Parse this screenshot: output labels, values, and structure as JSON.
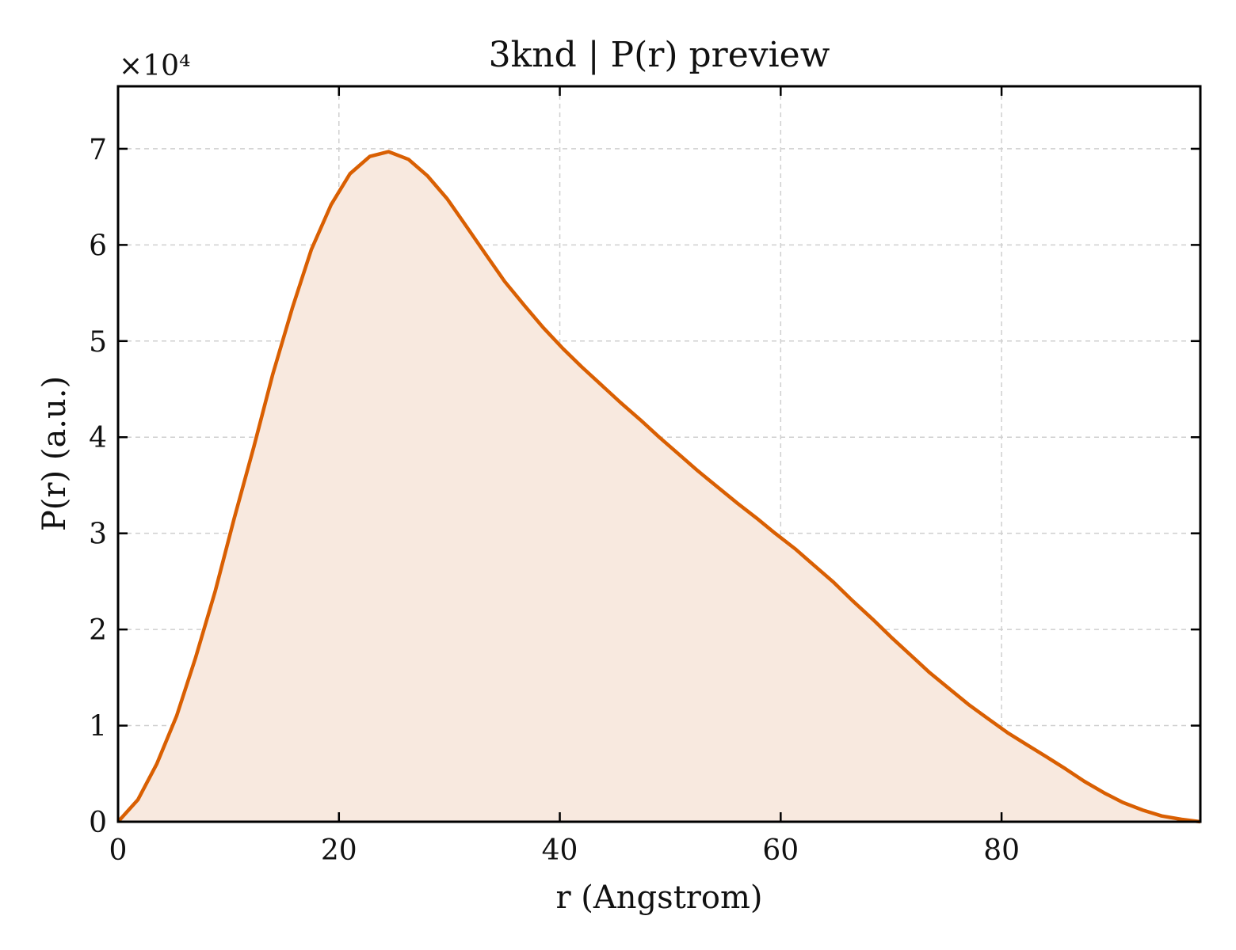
{
  "chart_data": {
    "type": "area",
    "title": "3knd | P(r) preview",
    "xlabel": "r (Angstrom)",
    "ylabel": "P(r) (a.u.)",
    "y_multiplier": "×10⁴",
    "xlim": [
      0,
      98
    ],
    "ylim": [
      0,
      76500
    ],
    "xticks": [
      0,
      20,
      40,
      60,
      80
    ],
    "yticks": [
      0,
      10000,
      20000,
      30000,
      40000,
      50000,
      60000,
      70000
    ],
    "ytick_labels": [
      "0",
      "1",
      "2",
      "3",
      "4",
      "5",
      "6",
      "7"
    ],
    "grid": true,
    "line_color": "#D95F02",
    "fill_color": "#F8E9DF",
    "series": [
      {
        "x": [
          0,
          1.8,
          3.5,
          5.3,
          7.0,
          8.8,
          10.5,
          12.3,
          14.0,
          15.8,
          17.5,
          19.3,
          21.0,
          22.8,
          24.5,
          26.3,
          28.0,
          29.8,
          31.5,
          33.3,
          35.0,
          36.8,
          38.5,
          40.3,
          42.0,
          43.8,
          45.5,
          47.3,
          49.0,
          50.8,
          52.5,
          54.3,
          56.0,
          57.8,
          59.5,
          61.3,
          63.0,
          64.8,
          66.5,
          68.3,
          70.0,
          71.8,
          73.5,
          75.3,
          77.0,
          78.8,
          80.5,
          82.3,
          84.0,
          85.8,
          87.5,
          89.3,
          91.0,
          92.8,
          94.5,
          96.3,
          98.0
        ],
        "y": [
          0,
          2300,
          6000,
          11000,
          17000,
          24000,
          31500,
          39000,
          46500,
          53500,
          59500,
          64200,
          67400,
          69200,
          69700,
          68900,
          67200,
          64800,
          62000,
          59000,
          56200,
          53700,
          51400,
          49200,
          47300,
          45400,
          43600,
          41800,
          40000,
          38200,
          36500,
          34800,
          33200,
          31600,
          30000,
          28400,
          26700,
          24900,
          23000,
          21100,
          19200,
          17300,
          15500,
          13800,
          12200,
          10700,
          9300,
          8000,
          6800,
          5500,
          4200,
          3000,
          2000,
          1200,
          600,
          250,
          0
        ]
      }
    ]
  }
}
